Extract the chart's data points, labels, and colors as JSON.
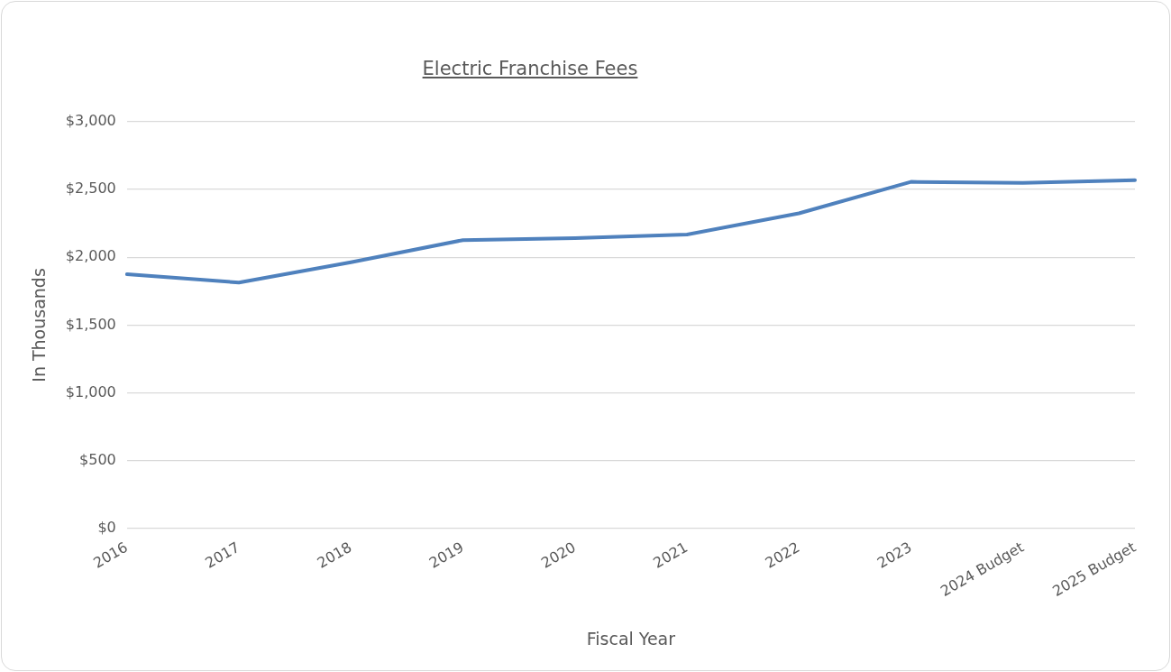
{
  "chart_data": {
    "type": "line",
    "title": "Electric Franchise Fees",
    "xlabel": "Fiscal Year",
    "ylabel": "In Thousands",
    "categories": [
      "2016",
      "2017",
      "2018",
      "2019",
      "2020",
      "2021",
      "2022",
      "2023",
      "2024 Budget",
      "2025 Budget"
    ],
    "series": [
      {
        "color": "#4f81bd",
        "values": [
          1875,
          1814,
          1964,
          2127,
          2141,
          2168,
          2325,
          2557,
          2550,
          2570
        ]
      }
    ],
    "ylim": [
      0,
      3000
    ],
    "yticks": [
      {
        "value": 0,
        "label": "$0"
      },
      {
        "value": 500,
        "label": "$500"
      },
      {
        "value": 1000,
        "label": "$1,000"
      },
      {
        "value": 1500,
        "label": "$1,500"
      },
      {
        "value": 2000,
        "label": "$2,000"
      },
      {
        "value": 2500,
        "label": "$2,500"
      },
      {
        "value": 3000,
        "label": "$3,000"
      }
    ],
    "grid": "y",
    "legend": false,
    "marker": "none",
    "line_style": "solid"
  }
}
